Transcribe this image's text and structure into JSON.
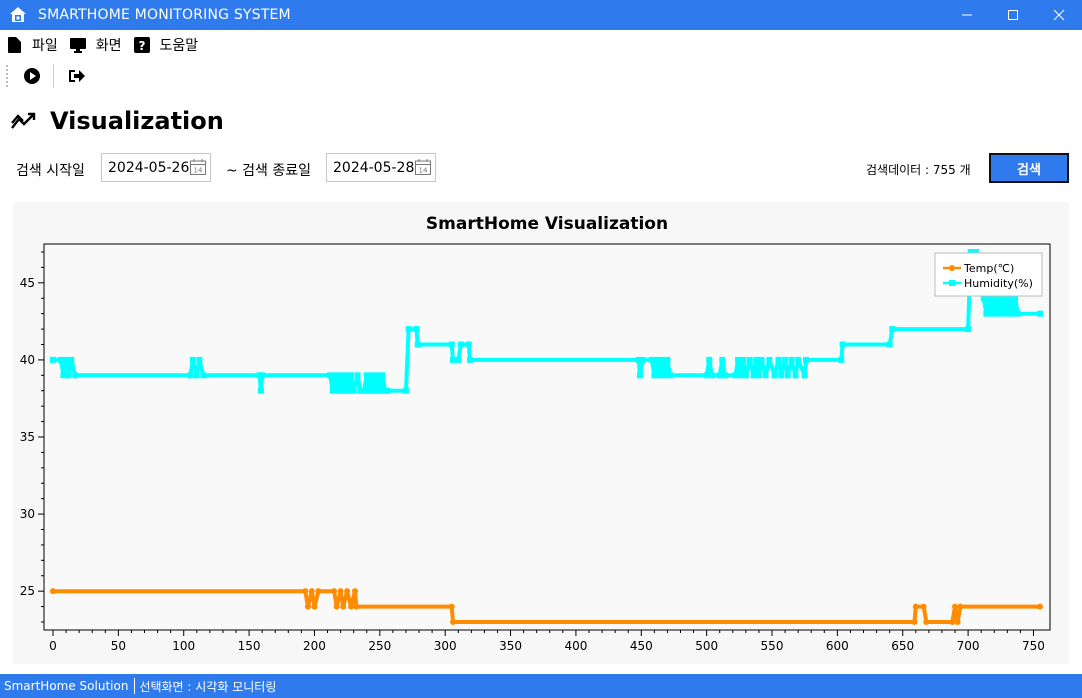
{
  "window": {
    "title": "SMARTHOME MONITORING SYSTEM"
  },
  "menu": {
    "items": [
      {
        "label": "파일",
        "icon": "file-icon"
      },
      {
        "label": "화면",
        "icon": "monitor-icon"
      },
      {
        "label": "도움말",
        "icon": "help-icon"
      }
    ]
  },
  "toolbar": {
    "icons": [
      "play-icon",
      "exit-icon"
    ]
  },
  "header": {
    "title": "Visualization",
    "icon": "chart-trend-icon"
  },
  "search": {
    "start_label": "검색 시작일",
    "start_value": "2024-05-26",
    "end_label": "~ 검색 종료일",
    "end_value": "2024-05-28",
    "count_text": "검색데이터 : 755 개",
    "button_label": "검색"
  },
  "colors": {
    "accent": "#2f7bee",
    "temp": "#ff8c00",
    "humidity": "#00ffff"
  },
  "chart_data": {
    "type": "line",
    "title": "SmartHome Visualization",
    "xlim": [
      0,
      755
    ],
    "ylim": [
      23,
      47
    ],
    "xticks": [
      0,
      50,
      100,
      150,
      200,
      250,
      300,
      350,
      400,
      450,
      500,
      550,
      600,
      650,
      700,
      750
    ],
    "yticks": [
      25,
      30,
      35,
      40,
      45
    ],
    "legend": "top-right",
    "series": [
      {
        "name": "Temp(℃)",
        "points": [
          [
            0,
            25
          ],
          [
            193,
            25
          ],
          [
            195,
            24
          ],
          [
            198,
            25
          ],
          [
            200,
            24
          ],
          [
            203,
            25
          ],
          [
            215,
            25
          ],
          [
            217,
            24
          ],
          [
            220,
            25
          ],
          [
            222,
            24
          ],
          [
            225,
            25
          ],
          [
            228,
            24
          ],
          [
            231,
            25
          ],
          [
            232,
            24
          ],
          [
            305,
            24
          ],
          [
            306,
            23
          ],
          [
            659,
            23
          ],
          [
            660,
            24
          ],
          [
            666,
            24
          ],
          [
            668,
            23
          ],
          [
            688,
            23
          ],
          [
            690,
            24
          ],
          [
            692,
            23
          ],
          [
            694,
            24
          ],
          [
            755,
            24
          ]
        ]
      },
      {
        "name": "Humidity(%)",
        "points": [
          [
            0,
            40
          ],
          [
            6,
            40
          ],
          [
            8,
            39
          ],
          [
            10,
            40
          ],
          [
            12,
            39
          ],
          [
            14,
            40
          ],
          [
            17,
            39
          ],
          [
            105,
            39
          ],
          [
            107,
            40
          ],
          [
            110,
            39
          ],
          [
            112,
            40
          ],
          [
            115,
            39
          ],
          [
            158,
            39
          ],
          [
            159,
            38
          ],
          [
            160,
            39
          ],
          [
            212,
            39
          ],
          [
            214,
            38
          ],
          [
            216,
            39
          ],
          [
            218,
            38
          ],
          [
            220,
            39
          ],
          [
            222,
            38
          ],
          [
            224,
            39
          ],
          [
            226,
            38
          ],
          [
            228,
            39
          ],
          [
            230,
            38
          ],
          [
            233,
            39
          ],
          [
            235,
            38
          ],
          [
            238,
            38
          ],
          [
            240,
            39
          ],
          [
            242,
            38
          ],
          [
            244,
            39
          ],
          [
            246,
            38
          ],
          [
            248,
            39
          ],
          [
            250,
            38
          ],
          [
            252,
            39
          ],
          [
            254,
            38
          ],
          [
            256,
            38
          ],
          [
            270,
            38
          ],
          [
            272,
            42
          ],
          [
            278,
            42
          ],
          [
            279,
            41
          ],
          [
            305,
            41
          ],
          [
            306,
            40
          ],
          [
            310,
            40
          ],
          [
            312,
            41
          ],
          [
            318,
            41
          ],
          [
            319,
            40
          ],
          [
            448,
            40
          ],
          [
            449,
            39
          ],
          [
            451,
            40
          ],
          [
            458,
            40
          ],
          [
            460,
            39
          ],
          [
            462,
            40
          ],
          [
            464,
            39
          ],
          [
            466,
            40
          ],
          [
            468,
            39
          ],
          [
            470,
            40
          ],
          [
            472,
            39
          ],
          [
            500,
            39
          ],
          [
            502,
            40
          ],
          [
            504,
            39
          ],
          [
            510,
            39
          ],
          [
            512,
            40
          ],
          [
            514,
            39
          ],
          [
            522,
            39
          ],
          [
            524,
            40
          ],
          [
            526,
            39
          ],
          [
            528,
            40
          ],
          [
            530,
            39
          ],
          [
            533,
            40
          ],
          [
            536,
            39
          ],
          [
            538,
            40
          ],
          [
            540,
            39
          ],
          [
            542,
            40
          ],
          [
            545,
            39
          ],
          [
            548,
            40
          ],
          [
            552,
            39
          ],
          [
            555,
            40
          ],
          [
            557,
            39
          ],
          [
            560,
            40
          ],
          [
            562,
            39
          ],
          [
            565,
            40
          ],
          [
            568,
            39
          ],
          [
            570,
            40
          ],
          [
            575,
            39
          ],
          [
            576,
            40
          ],
          [
            603,
            40
          ],
          [
            604,
            41
          ],
          [
            640,
            41
          ],
          [
            642,
            42
          ],
          [
            700,
            42
          ],
          [
            702,
            47
          ],
          [
            706,
            47
          ],
          [
            708,
            45
          ],
          [
            712,
            44
          ],
          [
            714,
            43
          ],
          [
            716,
            44
          ],
          [
            718,
            43
          ],
          [
            720,
            44
          ],
          [
            722,
            43
          ],
          [
            724,
            44
          ],
          [
            726,
            43
          ],
          [
            728,
            44
          ],
          [
            730,
            43
          ],
          [
            732,
            44
          ],
          [
            734,
            43
          ],
          [
            736,
            44
          ],
          [
            738,
            43
          ],
          [
            755,
            43
          ]
        ]
      }
    ]
  },
  "status": {
    "app": "SmartHome Solution",
    "screen": "선택화면 :  시각화 모니터링"
  }
}
